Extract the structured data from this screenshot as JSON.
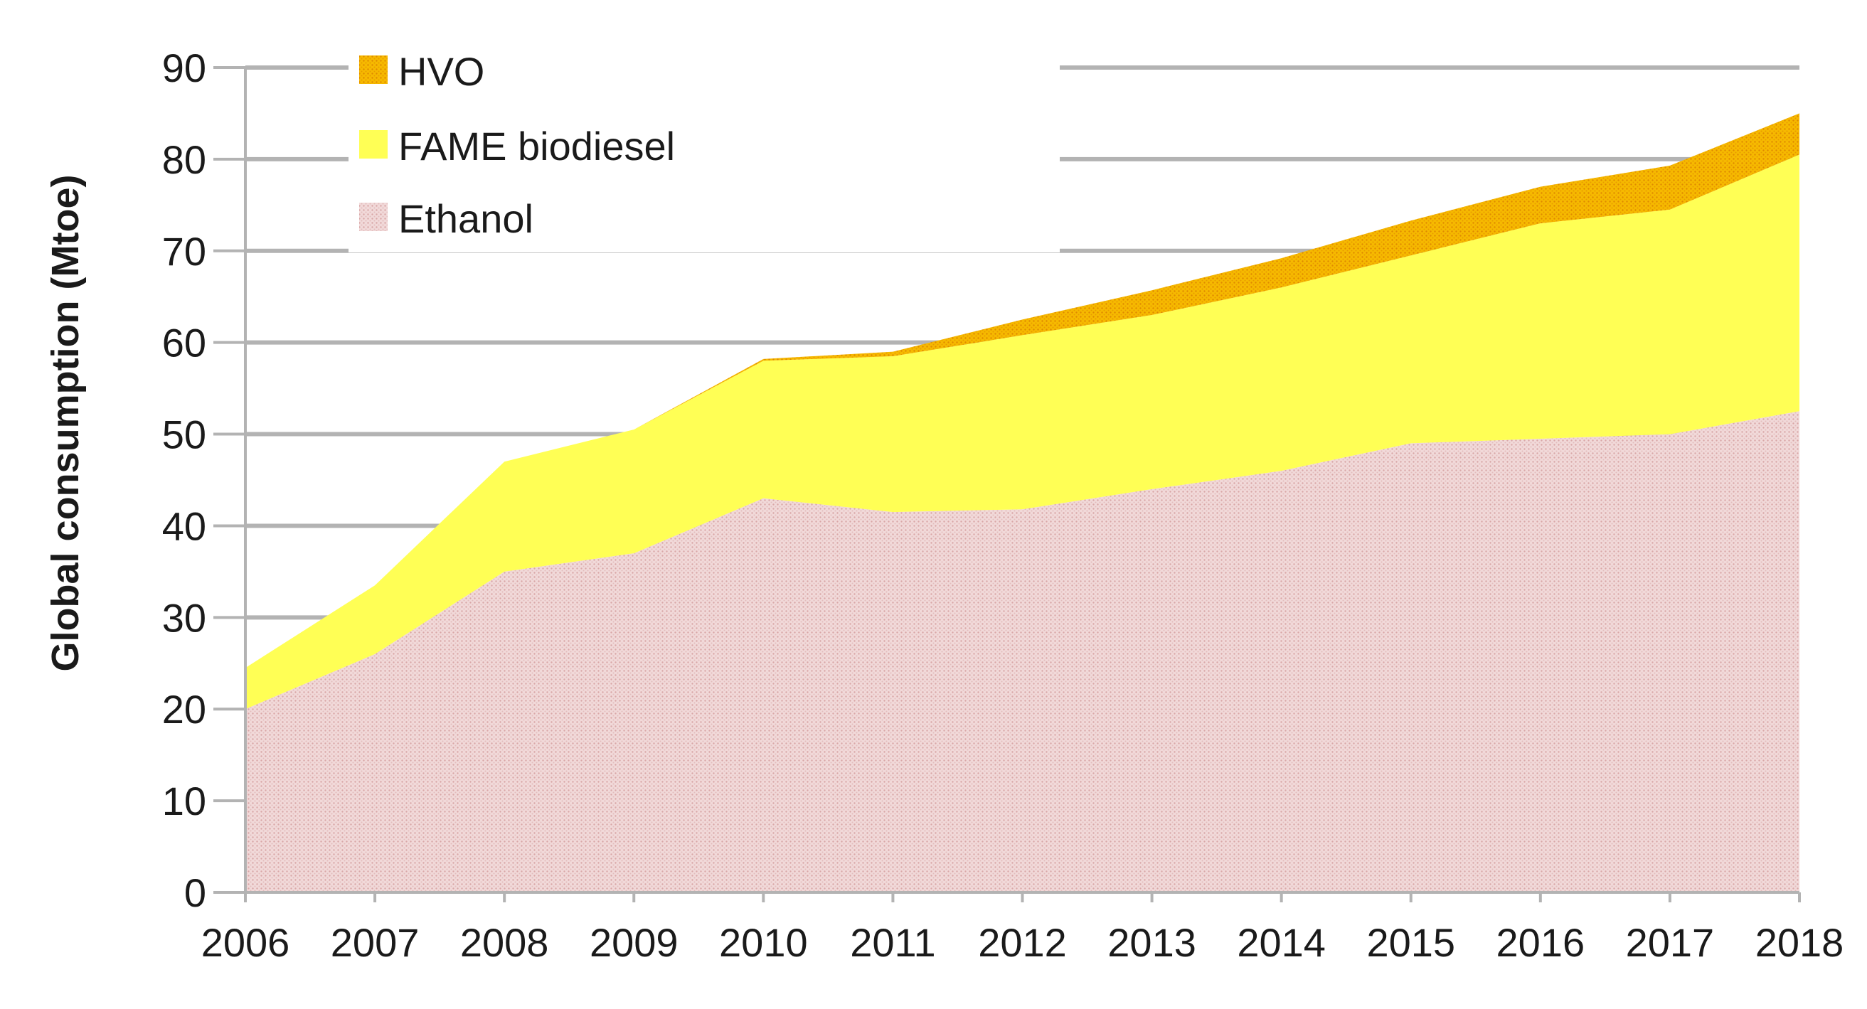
{
  "chart_data": {
    "type": "area",
    "stacked": true,
    "title": "",
    "xlabel": "",
    "ylabel": "Global consumption (Mtoe)",
    "ylim": [
      0,
      90
    ],
    "yticks": [
      "0",
      "10",
      "20",
      "30",
      "40",
      "50",
      "60",
      "70",
      "80",
      "90"
    ],
    "categories": [
      "2006",
      "2007",
      "2008",
      "2009",
      "2010",
      "2011",
      "2012",
      "2013",
      "2014",
      "2015",
      "2016",
      "2017",
      "2018"
    ],
    "grid": true,
    "legend_position": "top-left",
    "series": [
      {
        "name": "Ethanol",
        "color": "#f0d2d2",
        "pattern": "dotted",
        "values": [
          20,
          26,
          35,
          37,
          43,
          41.5,
          41.8,
          44,
          46,
          49,
          49.5,
          50,
          52.5
        ]
      },
      {
        "name": "FAME biodiesel",
        "color": "#ffff55",
        "pattern": "solid",
        "values": [
          4.5,
          7.5,
          12,
          13.5,
          15,
          17,
          19,
          19,
          20,
          20.5,
          23.5,
          24.5,
          28
        ]
      },
      {
        "name": "HVO",
        "color": "#f5b800",
        "pattern": "dotted",
        "values": [
          0,
          0,
          0,
          0,
          0.2,
          0.5,
          1.7,
          2.7,
          3.2,
          3.8,
          4,
          4.8,
          4.5
        ]
      }
    ],
    "legend_order": [
      "HVO",
      "FAME biodiesel",
      "Ethanol"
    ]
  }
}
